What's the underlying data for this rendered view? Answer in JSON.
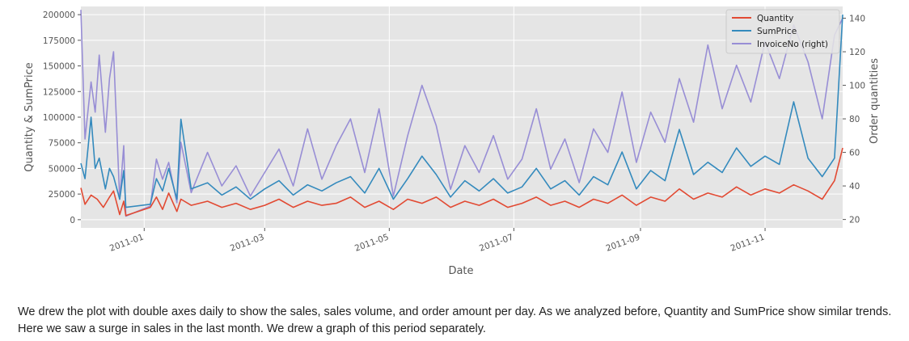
{
  "chart_data": {
    "type": "line",
    "xlabel": "Date",
    "ylabel_left": "Quantity & SumPrice",
    "ylabel_right": "Order quantities",
    "x_range": [
      "2010-12-01",
      "2011-12-09"
    ],
    "x_ticks": [
      "2011-01",
      "2011-03",
      "2011-05",
      "2011-07",
      "2011-09",
      "2011-11"
    ],
    "x_tick_dates": [
      "2011-01-01",
      "2011-03-01",
      "2011-05-01",
      "2011-07-01",
      "2011-09-01",
      "2011-11-01"
    ],
    "ylim_left": [
      -8000,
      208000
    ],
    "yticks_left": [
      0,
      25000,
      50000,
      75000,
      100000,
      125000,
      150000,
      175000,
      200000
    ],
    "ylim_right": [
      15,
      147
    ],
    "yticks_right": [
      20,
      40,
      60,
      80,
      100,
      120,
      140
    ],
    "grid": true,
    "legend_placement": "top-right",
    "legend": [
      "Quantity",
      "SumPrice",
      "InvoiceNo (right)"
    ],
    "series": [
      {
        "name": "Quantity",
        "axis": "left",
        "color": "#E24A33",
        "points": [
          [
            "2010-12-01",
            31000
          ],
          [
            "2010-12-03",
            15000
          ],
          [
            "2010-12-06",
            24000
          ],
          [
            "2010-12-09",
            20000
          ],
          [
            "2010-12-12",
            12000
          ],
          [
            "2010-12-15",
            22000
          ],
          [
            "2010-12-17",
            28000
          ],
          [
            "2010-12-20",
            5000
          ],
          [
            "2010-12-22",
            18000
          ],
          [
            "2010-12-23",
            4000
          ],
          [
            "2011-01-04",
            12000
          ],
          [
            "2011-01-07",
            22000
          ],
          [
            "2011-01-10",
            10000
          ],
          [
            "2011-01-13",
            26000
          ],
          [
            "2011-01-17",
            8000
          ],
          [
            "2011-01-19",
            20000
          ],
          [
            "2011-01-24",
            14000
          ],
          [
            "2011-02-01",
            18000
          ],
          [
            "2011-02-08",
            12000
          ],
          [
            "2011-02-15",
            16000
          ],
          [
            "2011-02-22",
            10000
          ],
          [
            "2011-03-01",
            14000
          ],
          [
            "2011-03-08",
            20000
          ],
          [
            "2011-03-15",
            12000
          ],
          [
            "2011-03-22",
            18000
          ],
          [
            "2011-03-29",
            14000
          ],
          [
            "2011-04-05",
            16000
          ],
          [
            "2011-04-12",
            22000
          ],
          [
            "2011-04-19",
            12000
          ],
          [
            "2011-04-26",
            18000
          ],
          [
            "2011-05-03",
            10000
          ],
          [
            "2011-05-10",
            20000
          ],
          [
            "2011-05-17",
            16000
          ],
          [
            "2011-05-24",
            22000
          ],
          [
            "2011-05-31",
            12000
          ],
          [
            "2011-06-07",
            18000
          ],
          [
            "2011-06-14",
            14000
          ],
          [
            "2011-06-21",
            20000
          ],
          [
            "2011-06-28",
            12000
          ],
          [
            "2011-07-05",
            16000
          ],
          [
            "2011-07-12",
            22000
          ],
          [
            "2011-07-19",
            14000
          ],
          [
            "2011-07-26",
            18000
          ],
          [
            "2011-08-02",
            12000
          ],
          [
            "2011-08-09",
            20000
          ],
          [
            "2011-08-16",
            16000
          ],
          [
            "2011-08-23",
            24000
          ],
          [
            "2011-08-30",
            14000
          ],
          [
            "2011-09-06",
            22000
          ],
          [
            "2011-09-13",
            18000
          ],
          [
            "2011-09-20",
            30000
          ],
          [
            "2011-09-27",
            20000
          ],
          [
            "2011-10-04",
            26000
          ],
          [
            "2011-10-11",
            22000
          ],
          [
            "2011-10-18",
            32000
          ],
          [
            "2011-10-25",
            24000
          ],
          [
            "2011-11-01",
            30000
          ],
          [
            "2011-11-08",
            26000
          ],
          [
            "2011-11-15",
            34000
          ],
          [
            "2011-11-22",
            28000
          ],
          [
            "2011-11-29",
            20000
          ],
          [
            "2011-12-05",
            38000
          ],
          [
            "2011-12-09",
            70000
          ]
        ]
      },
      {
        "name": "SumPrice",
        "axis": "left",
        "color": "#348ABD",
        "points": [
          [
            "2010-12-01",
            55000
          ],
          [
            "2010-12-03",
            40000
          ],
          [
            "2010-12-06",
            100000
          ],
          [
            "2010-12-08",
            50000
          ],
          [
            "2010-12-10",
            60000
          ],
          [
            "2010-12-13",
            30000
          ],
          [
            "2010-12-15",
            50000
          ],
          [
            "2010-12-17",
            42000
          ],
          [
            "2010-12-20",
            20000
          ],
          [
            "2010-12-22",
            48000
          ],
          [
            "2010-12-23",
            12000
          ],
          [
            "2011-01-04",
            15000
          ],
          [
            "2011-01-07",
            40000
          ],
          [
            "2011-01-10",
            28000
          ],
          [
            "2011-01-13",
            50000
          ],
          [
            "2011-01-17",
            20000
          ],
          [
            "2011-01-19",
            98000
          ],
          [
            "2011-01-24",
            30000
          ],
          [
            "2011-02-01",
            36000
          ],
          [
            "2011-02-08",
            24000
          ],
          [
            "2011-02-15",
            32000
          ],
          [
            "2011-02-22",
            20000
          ],
          [
            "2011-03-01",
            30000
          ],
          [
            "2011-03-08",
            38000
          ],
          [
            "2011-03-15",
            24000
          ],
          [
            "2011-03-22",
            34000
          ],
          [
            "2011-03-29",
            28000
          ],
          [
            "2011-04-05",
            36000
          ],
          [
            "2011-04-12",
            42000
          ],
          [
            "2011-04-19",
            26000
          ],
          [
            "2011-04-26",
            50000
          ],
          [
            "2011-05-03",
            20000
          ],
          [
            "2011-05-10",
            40000
          ],
          [
            "2011-05-17",
            62000
          ],
          [
            "2011-05-24",
            44000
          ],
          [
            "2011-05-31",
            22000
          ],
          [
            "2011-06-07",
            38000
          ],
          [
            "2011-06-14",
            28000
          ],
          [
            "2011-06-21",
            40000
          ],
          [
            "2011-06-28",
            26000
          ],
          [
            "2011-07-05",
            32000
          ],
          [
            "2011-07-12",
            50000
          ],
          [
            "2011-07-19",
            30000
          ],
          [
            "2011-07-26",
            38000
          ],
          [
            "2011-08-02",
            24000
          ],
          [
            "2011-08-09",
            42000
          ],
          [
            "2011-08-16",
            34000
          ],
          [
            "2011-08-23",
            66000
          ],
          [
            "2011-08-30",
            30000
          ],
          [
            "2011-09-06",
            48000
          ],
          [
            "2011-09-13",
            38000
          ],
          [
            "2011-09-20",
            88000
          ],
          [
            "2011-09-27",
            44000
          ],
          [
            "2011-10-04",
            56000
          ],
          [
            "2011-10-11",
            46000
          ],
          [
            "2011-10-18",
            70000
          ],
          [
            "2011-10-25",
            52000
          ],
          [
            "2011-11-01",
            62000
          ],
          [
            "2011-11-08",
            54000
          ],
          [
            "2011-11-15",
            115000
          ],
          [
            "2011-11-22",
            60000
          ],
          [
            "2011-11-29",
            42000
          ],
          [
            "2011-12-05",
            60000
          ],
          [
            "2011-12-09",
            200000
          ]
        ]
      },
      {
        "name": "InvoiceNo (right)",
        "axis": "right",
        "color": "#988ED5",
        "points": [
          [
            "2010-12-01",
            145
          ],
          [
            "2010-12-03",
            68
          ],
          [
            "2010-12-06",
            102
          ],
          [
            "2010-12-08",
            84
          ],
          [
            "2010-12-10",
            118
          ],
          [
            "2010-12-13",
            72
          ],
          [
            "2010-12-15",
            104
          ],
          [
            "2010-12-17",
            120
          ],
          [
            "2010-12-20",
            32
          ],
          [
            "2010-12-22",
            64
          ],
          [
            "2010-12-23",
            22
          ],
          [
            "2011-01-04",
            28
          ],
          [
            "2011-01-07",
            56
          ],
          [
            "2011-01-10",
            44
          ],
          [
            "2011-01-13",
            54
          ],
          [
            "2011-01-17",
            30
          ],
          [
            "2011-01-19",
            66
          ],
          [
            "2011-01-24",
            36
          ],
          [
            "2011-02-01",
            60
          ],
          [
            "2011-02-08",
            40
          ],
          [
            "2011-02-15",
            52
          ],
          [
            "2011-02-22",
            34
          ],
          [
            "2011-03-01",
            48
          ],
          [
            "2011-03-08",
            62
          ],
          [
            "2011-03-15",
            40
          ],
          [
            "2011-03-22",
            74
          ],
          [
            "2011-03-29",
            44
          ],
          [
            "2011-04-05",
            64
          ],
          [
            "2011-04-12",
            80
          ],
          [
            "2011-04-19",
            48
          ],
          [
            "2011-04-26",
            86
          ],
          [
            "2011-05-03",
            34
          ],
          [
            "2011-05-10",
            70
          ],
          [
            "2011-05-17",
            100
          ],
          [
            "2011-05-24",
            76
          ],
          [
            "2011-05-31",
            38
          ],
          [
            "2011-06-07",
            64
          ],
          [
            "2011-06-14",
            48
          ],
          [
            "2011-06-21",
            70
          ],
          [
            "2011-06-28",
            44
          ],
          [
            "2011-07-05",
            56
          ],
          [
            "2011-07-12",
            86
          ],
          [
            "2011-07-19",
            50
          ],
          [
            "2011-07-26",
            68
          ],
          [
            "2011-08-02",
            42
          ],
          [
            "2011-08-09",
            74
          ],
          [
            "2011-08-16",
            60
          ],
          [
            "2011-08-23",
            96
          ],
          [
            "2011-08-30",
            54
          ],
          [
            "2011-09-06",
            84
          ],
          [
            "2011-09-13",
            66
          ],
          [
            "2011-09-20",
            104
          ],
          [
            "2011-09-27",
            78
          ],
          [
            "2011-10-04",
            124
          ],
          [
            "2011-10-11",
            86
          ],
          [
            "2011-10-18",
            112
          ],
          [
            "2011-10-25",
            90
          ],
          [
            "2011-11-01",
            126
          ],
          [
            "2011-11-08",
            104
          ],
          [
            "2011-11-15",
            136
          ],
          [
            "2011-11-22",
            114
          ],
          [
            "2011-11-29",
            80
          ],
          [
            "2011-12-05",
            130
          ],
          [
            "2011-12-09",
            140
          ]
        ]
      }
    ]
  },
  "caption": "We drew the plot with double axes daily to show the sales, sales volume, and order amount per day. As we analyzed before, Quantity and SumPrice show similar trends. Here we saw a surge in sales in the last month. We drew a graph of this period separately."
}
